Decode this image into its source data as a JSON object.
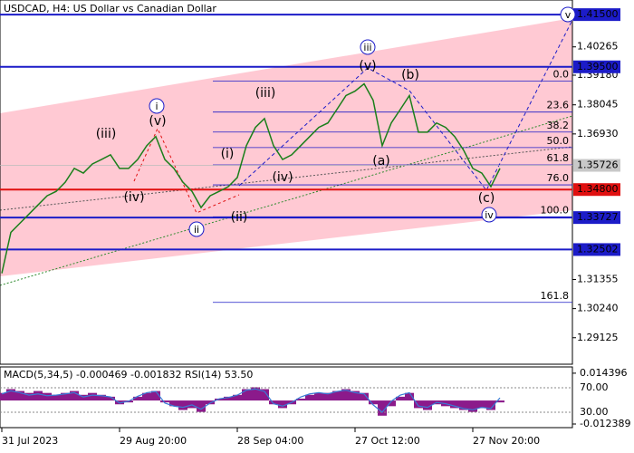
{
  "chart_data": [
    {
      "type": "line",
      "title": "USDCAD, H4:  US Dollar vs Canadian Dollar",
      "color": "#1a7f1a",
      "categories": [
        "31 Jul 2023",
        null,
        null,
        null,
        null,
        null,
        null,
        null,
        null,
        null,
        null,
        null,
        null,
        "29 Aug 20:00",
        null,
        null,
        null,
        null,
        null,
        null,
        null,
        null,
        null,
        null,
        null,
        null,
        "28 Sep 04:00",
        null,
        null,
        null,
        null,
        null,
        null,
        null,
        null,
        null,
        null,
        null,
        null,
        "27 Oct 12:00",
        null,
        null,
        null,
        null,
        null,
        null,
        null,
        null,
        null,
        null,
        null,
        null,
        "27 Nov 20:00",
        null,
        null,
        null
      ],
      "values": [
        1.3159,
        1.3316,
        1.3351,
        1.3386,
        1.3421,
        1.3456,
        1.3473,
        1.3508,
        1.3561,
        1.3543,
        1.3578,
        1.3595,
        1.3613,
        1.3561,
        1.3561,
        1.3595,
        1.3648,
        1.3683,
        1.3595,
        1.3561,
        1.3508,
        1.3473,
        1.3411,
        1.3456,
        1.3473,
        1.3491,
        1.3526,
        1.3648,
        1.3718,
        1.3752,
        1.3648,
        1.3595,
        1.3613,
        1.3648,
        1.3683,
        1.3718,
        1.3735,
        1.3787,
        1.384,
        1.3857,
        1.3885,
        1.3822,
        1.3648,
        1.3735,
        1.3787,
        1.384,
        1.37,
        1.37,
        1.3735,
        1.3718,
        1.3683,
        1.363,
        1.3561,
        1.3543,
        1.3491,
        1.3561
      ],
      "ylim": [
        1.2811,
        1.4206
      ],
      "yticks": [
        1.40265,
        {
          "value": 1.3918,
          "label": "1.39180"
        },
        1.38045,
        {
          "value": 1.3693,
          "label": "1.36930"
        },
        1.31355,
        {
          "value": 1.3024,
          "label": "1.30240"
        },
        1.29125
      ],
      "last_price": 1.35726,
      "levels": [
        {
          "value": 1.415,
          "label": "1.41500",
          "color": "#1c1cc8"
        },
        {
          "value": 1.395,
          "label": "1.39500",
          "color": "#1c1cc8"
        },
        {
          "value": 1.348,
          "label": "1.34800",
          "color": "#e01010"
        },
        {
          "value": 1.33727,
          "color": "#1c1cc8"
        },
        {
          "value": 1.32502,
          "color": "#1c1cc8"
        }
      ],
      "fibonacci": {
        "levels": [
          {
            "value": 0,
            "label": "0.0"
          },
          23.6,
          38.2,
          {
            "value": 50,
            "label": "50.0"
          },
          61.8,
          {
            "value": 76,
            "label": "76.0"
          },
          {
            "value": 100,
            "label": "100.0"
          },
          161.8
        ],
        "prices": [
          1.38954,
          1.37768,
          1.37001,
          1.36408,
          1.35745,
          1.34978,
          1.33757,
          1.30478
        ]
      },
      "wave_labels_red": [
        "(iii)",
        "(v)",
        "(iv)",
        "(i)",
        "(ii)",
        "(iii)",
        "(iv)",
        "(v)",
        "(a)",
        "(b)",
        "(c)"
      ],
      "wave_labels_blue": [
        "i",
        "ii",
        "iii",
        "iv",
        "v"
      ]
    },
    {
      "type": "macd",
      "title": "MACD(5,34,5) -0.000469 -0.001832 RSI(14) 53.50",
      "color": "#8b1a8b",
      "rsi_color": "#3a7bd5",
      "values": [
        0.004,
        0.006,
        0.005,
        0.004,
        0.005,
        0.004,
        0.003,
        0.004,
        0.005,
        0.003,
        0.004,
        0.003,
        0.002,
        -0.002,
        -0.001,
        0.002,
        0.004,
        0.005,
        -0.001,
        -0.003,
        -0.005,
        -0.004,
        -0.006,
        -0.002,
        0.001,
        0.002,
        0.003,
        0.006,
        0.007,
        0.006,
        -0.002,
        -0.004,
        -0.002,
        0.001,
        0.003,
        0.004,
        0.004,
        0.005,
        0.006,
        0.005,
        0.004,
        -0.002,
        -0.008,
        -0.003,
        0.002,
        0.004,
        -0.004,
        -0.005,
        -0.002,
        -0.003,
        -0.004,
        -0.005,
        -0.006,
        -0.004,
        -0.005,
        -0.001
      ],
      "rsi": [
        60,
        65,
        62,
        58,
        60,
        57,
        58,
        60,
        62,
        55,
        58,
        57,
        55,
        45,
        48,
        56,
        62,
        64,
        45,
        40,
        38,
        42,
        35,
        45,
        52,
        54,
        58,
        66,
        68,
        64,
        44,
        40,
        46,
        55,
        60,
        62,
        60,
        64,
        66,
        62,
        60,
        42,
        30,
        48,
        58,
        62,
        40,
        38,
        46,
        44,
        40,
        36,
        34,
        38,
        36,
        53.5
      ],
      "ylim": [
        -0.0143,
        0.0177
      ],
      "yticks": [
        0.014396,
        -0.012389
      ],
      "y2lim": [
        4.8,
        104.1
      ],
      "y2ticks": [
        {
          "value": 70,
          "label": "70.00"
        },
        {
          "value": 30,
          "label": "30.00"
        }
      ]
    }
  ]
}
